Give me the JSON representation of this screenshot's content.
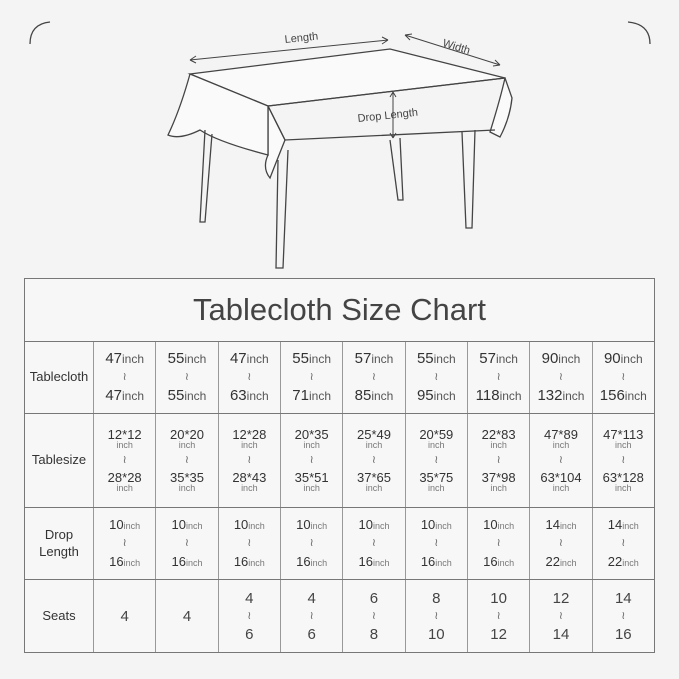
{
  "diagram": {
    "labels": {
      "length": "Length",
      "width": "Width",
      "drop_length": "Drop Length"
    }
  },
  "chart": {
    "title": "Tablecloth Size Chart",
    "range_separator": "≀",
    "unit": "inch",
    "row_labels": {
      "tablecloth": "Tablecloth",
      "tablesize": "Tablesize",
      "drop_length": "Drop Length",
      "seats": "Seats"
    },
    "columns": [
      {
        "tablecloth": [
          "47",
          "47"
        ],
        "tablesize": [
          "12*12",
          "28*28"
        ],
        "drop": [
          "10",
          "16"
        ],
        "seats": [
          "4"
        ]
      },
      {
        "tablecloth": [
          "55",
          "55"
        ],
        "tablesize": [
          "20*20",
          "35*35"
        ],
        "drop": [
          "10",
          "16"
        ],
        "seats": [
          "4"
        ]
      },
      {
        "tablecloth": [
          "47",
          "63"
        ],
        "tablesize": [
          "12*28",
          "28*43"
        ],
        "drop": [
          "10",
          "16"
        ],
        "seats": [
          "4",
          "6"
        ]
      },
      {
        "tablecloth": [
          "55",
          "71"
        ],
        "tablesize": [
          "20*35",
          "35*51"
        ],
        "drop": [
          "10",
          "16"
        ],
        "seats": [
          "4",
          "6"
        ]
      },
      {
        "tablecloth": [
          "57",
          "85"
        ],
        "tablesize": [
          "25*49",
          "37*65"
        ],
        "drop": [
          "10",
          "16"
        ],
        "seats": [
          "6",
          "8"
        ]
      },
      {
        "tablecloth": [
          "55",
          "95"
        ],
        "tablesize": [
          "20*59",
          "35*75"
        ],
        "drop": [
          "10",
          "16"
        ],
        "seats": [
          "8",
          "10"
        ]
      },
      {
        "tablecloth": [
          "57",
          "118"
        ],
        "tablesize": [
          "22*83",
          "37*98"
        ],
        "drop": [
          "10",
          "16"
        ],
        "seats": [
          "10",
          "12"
        ]
      },
      {
        "tablecloth": [
          "90",
          "132"
        ],
        "tablesize": [
          "47*89",
          "63*104"
        ],
        "drop": [
          "14",
          "22"
        ],
        "seats": [
          "12",
          "14"
        ]
      },
      {
        "tablecloth": [
          "90",
          "156"
        ],
        "tablesize": [
          "47*113",
          "63*128"
        ],
        "drop": [
          "14",
          "22"
        ],
        "seats": [
          "14",
          "16"
        ]
      }
    ]
  }
}
